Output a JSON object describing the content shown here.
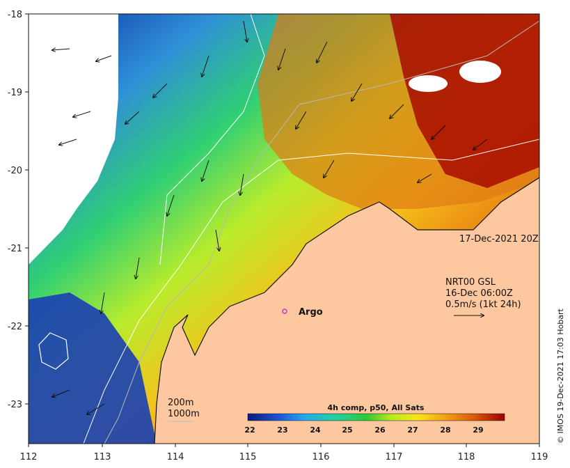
{
  "map": {
    "date_stamp": "17-Dec-2021 20Z",
    "current_source": "NRT00 GSL",
    "current_time": "16-Dec 06:00Z",
    "current_scale": "0.5m/s (1kt 24h)",
    "argo_label": "Argo",
    "isobath_200": "200m",
    "isobath_1000": "1000m",
    "colorbar_title": "4h comp, p50, All Sats",
    "colorbar_ticks": [
      "22",
      "23",
      "24",
      "25",
      "26",
      "27",
      "28",
      "29"
    ],
    "x_ticks": [
      "112",
      "113",
      "114",
      "115",
      "116",
      "117",
      "118",
      "119"
    ],
    "y_ticks": [
      "-18",
      "-19",
      "-20",
      "-21",
      "-22",
      "-23"
    ],
    "credit": "© IMOS 19-Dec-2021 17:03 Hobart"
  },
  "colors": {
    "land": "#fdc8a0",
    "argo_marker": "#d12fd1",
    "sst_low": "#0b1d86",
    "sst_high": "#a50000"
  }
}
